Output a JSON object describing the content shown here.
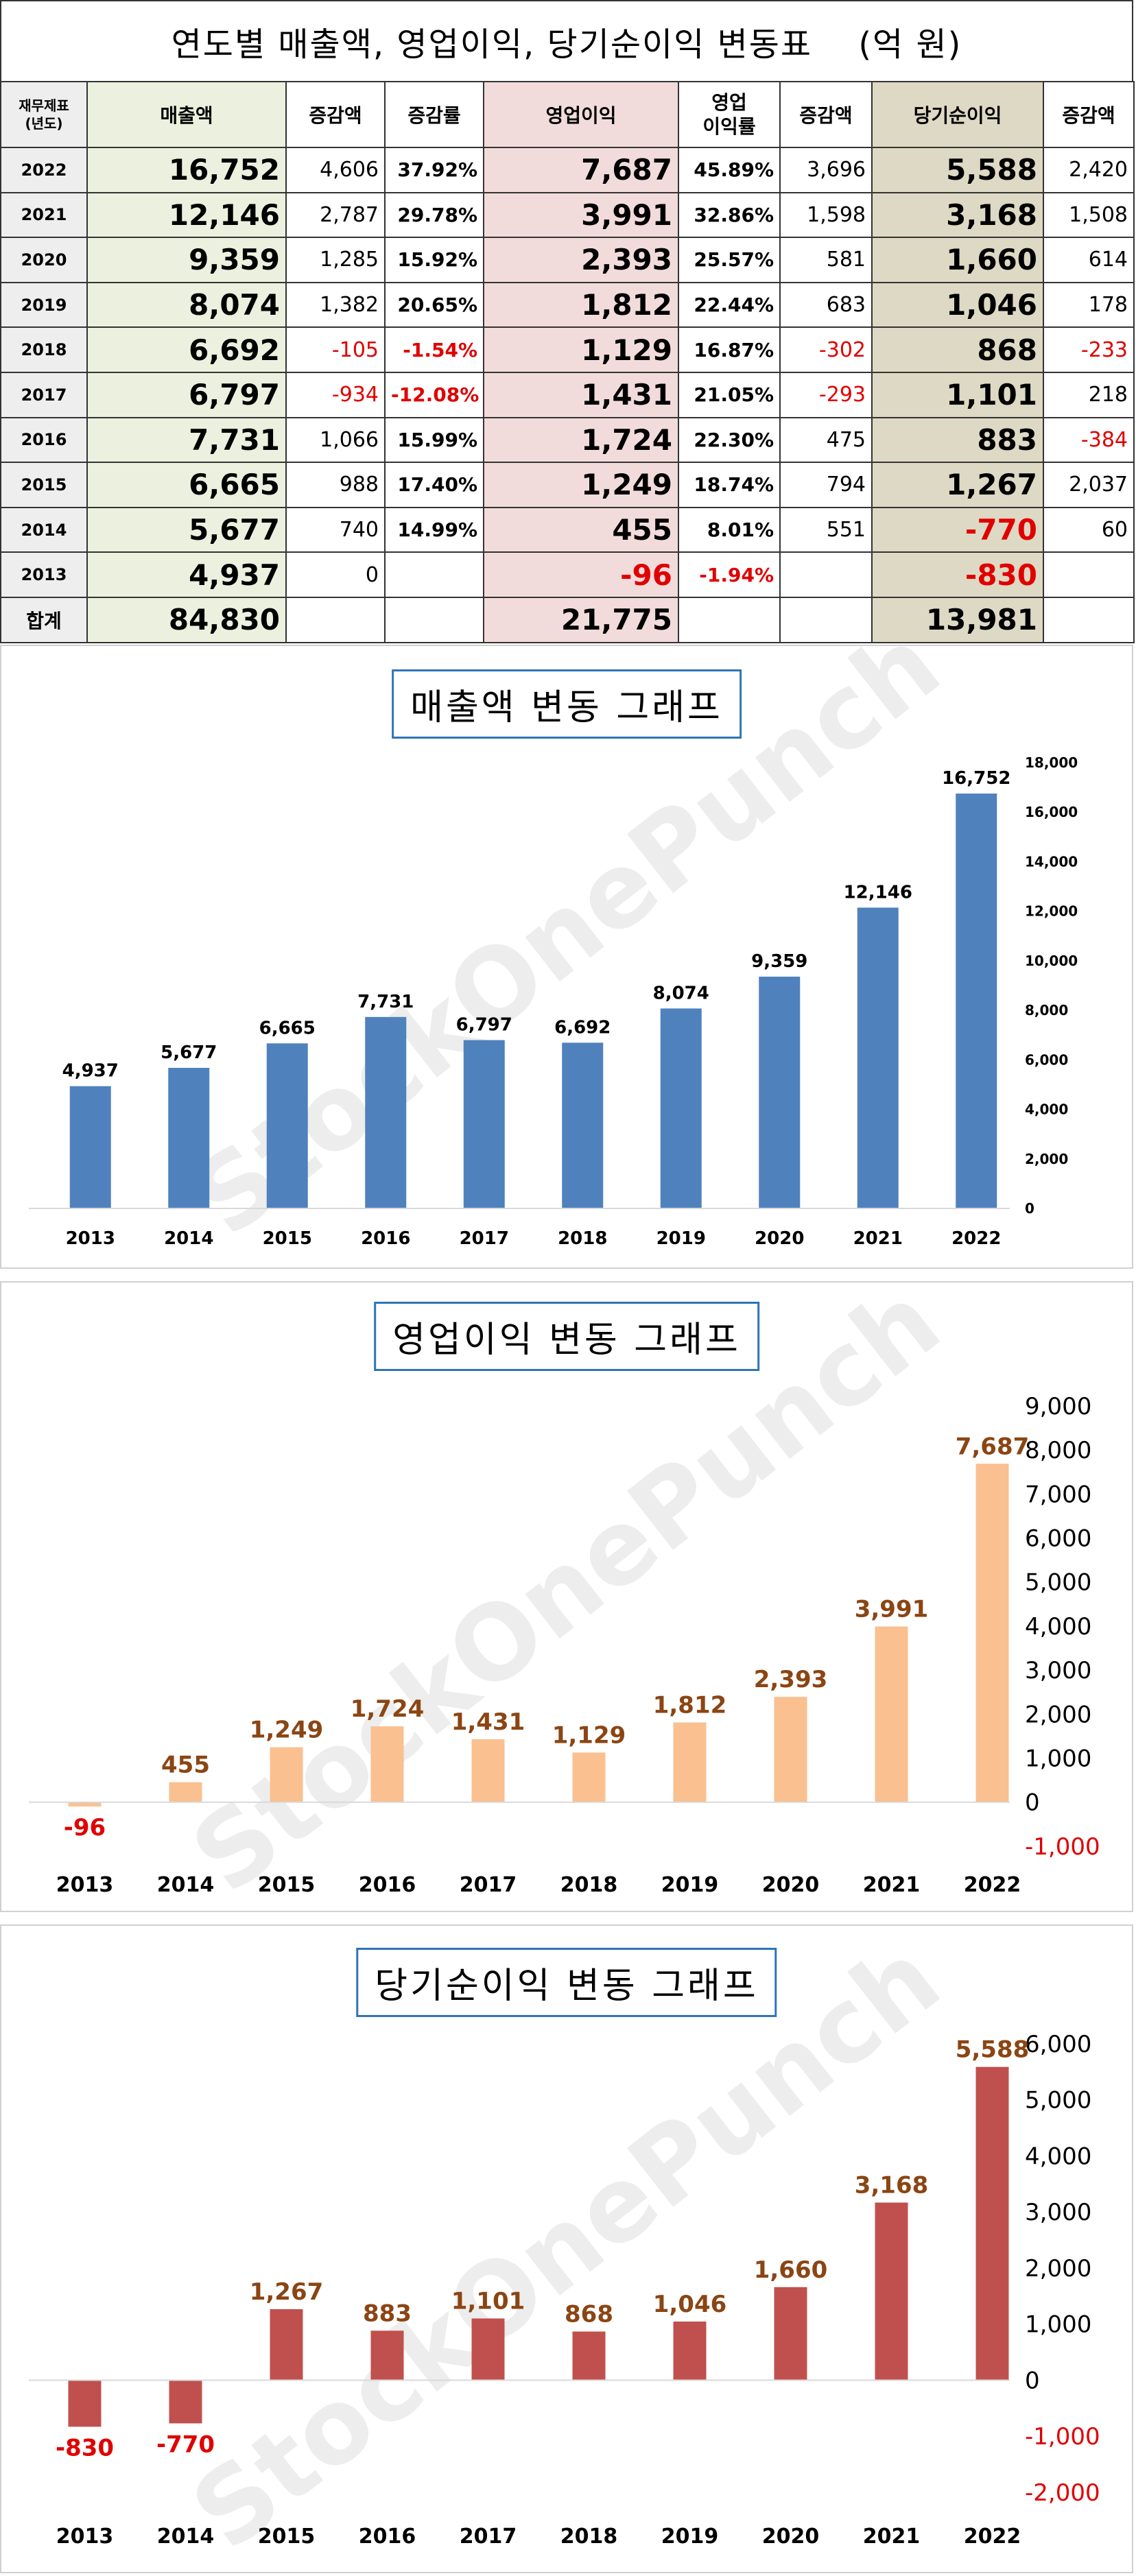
{
  "title": "연도별 매출액, 영업이익, 당기순이익 변동표　 (억 원)",
  "watermark": "StockOnePunch",
  "table": {
    "headers": {
      "year": "재무제표\n(년도)",
      "sales": "매출액",
      "sales_chg": "증감액",
      "sales_rate": "증감률",
      "op": "영업이익",
      "op_margin": "영업\n이익률",
      "op_chg": "증감액",
      "net": "당기순이익",
      "net_chg": "증감액"
    },
    "rows": [
      {
        "year": "2022",
        "sales": "16,752",
        "sales_chg": "4,606",
        "sales_rate": "37.92%",
        "op": "7,687",
        "op_margin": "45.89%",
        "op_chg": "3,696",
        "net": "5,588",
        "net_chg": "2,420"
      },
      {
        "year": "2021",
        "sales": "12,146",
        "sales_chg": "2,787",
        "sales_rate": "29.78%",
        "op": "3,991",
        "op_margin": "32.86%",
        "op_chg": "1,598",
        "net": "3,168",
        "net_chg": "1,508"
      },
      {
        "year": "2020",
        "sales": "9,359",
        "sales_chg": "1,285",
        "sales_rate": "15.92%",
        "op": "2,393",
        "op_margin": "25.57%",
        "op_chg": "581",
        "net": "1,660",
        "net_chg": "614"
      },
      {
        "year": "2019",
        "sales": "8,074",
        "sales_chg": "1,382",
        "sales_rate": "20.65%",
        "op": "1,812",
        "op_margin": "22.44%",
        "op_chg": "683",
        "net": "1,046",
        "net_chg": "178"
      },
      {
        "year": "2018",
        "sales": "6,692",
        "sales_chg": "-105",
        "sales_rate": "-1.54%",
        "op": "1,129",
        "op_margin": "16.87%",
        "op_chg": "-302",
        "net": "868",
        "net_chg": "-233"
      },
      {
        "year": "2017",
        "sales": "6,797",
        "sales_chg": "-934",
        "sales_rate": "-12.08%",
        "op": "1,431",
        "op_margin": "21.05%",
        "op_chg": "-293",
        "net": "1,101",
        "net_chg": "218"
      },
      {
        "year": "2016",
        "sales": "7,731",
        "sales_chg": "1,066",
        "sales_rate": "15.99%",
        "op": "1,724",
        "op_margin": "22.30%",
        "op_chg": "475",
        "net": "883",
        "net_chg": "-384"
      },
      {
        "year": "2015",
        "sales": "6,665",
        "sales_chg": "988",
        "sales_rate": "17.40%",
        "op": "1,249",
        "op_margin": "18.74%",
        "op_chg": "794",
        "net": "1,267",
        "net_chg": "2,037"
      },
      {
        "year": "2014",
        "sales": "5,677",
        "sales_chg": "740",
        "sales_rate": "14.99%",
        "op": "455",
        "op_margin": "8.01%",
        "op_chg": "551",
        "net": "-770",
        "net_chg": "60"
      },
      {
        "year": "2013",
        "sales": "4,937",
        "sales_chg": "0",
        "sales_rate": "",
        "op": "-96",
        "op_margin": "-1.94%",
        "op_chg": "",
        "net": "-830",
        "net_chg": ""
      }
    ],
    "total": {
      "label": "합계",
      "sales": "84,830",
      "op": "21,775",
      "net": "13,981"
    }
  },
  "chart_data": [
    {
      "type": "bar",
      "title": "매출액 변동 그래프",
      "categories": [
        "2013",
        "2014",
        "2015",
        "2016",
        "2017",
        "2018",
        "2019",
        "2020",
        "2021",
        "2022"
      ],
      "values": [
        4937,
        5677,
        6665,
        7731,
        6797,
        6692,
        8074,
        9359,
        12146,
        16752
      ],
      "ylim": [
        0,
        18000
      ],
      "yticks": [
        0,
        2000,
        4000,
        6000,
        8000,
        10000,
        12000,
        14000,
        16000,
        18000
      ],
      "bar_color": "#4f81bd",
      "label_color": "#000000"
    },
    {
      "type": "bar",
      "title": "영업이익 변동 그래프",
      "categories": [
        "2013",
        "2014",
        "2015",
        "2016",
        "2017",
        "2018",
        "2019",
        "2020",
        "2021",
        "2022"
      ],
      "values": [
        -96,
        455,
        1249,
        1724,
        1431,
        1129,
        1812,
        2393,
        3991,
        7687
      ],
      "ylim": [
        -1000,
        9000
      ],
      "yticks": [
        -1000,
        0,
        1000,
        2000,
        3000,
        4000,
        5000,
        6000,
        7000,
        8000,
        9000
      ],
      "bar_color": "#fac090",
      "label_color": "#8b4513"
    },
    {
      "type": "bar",
      "title": "당기순이익 변동 그래프",
      "categories": [
        "2013",
        "2014",
        "2015",
        "2016",
        "2017",
        "2018",
        "2019",
        "2020",
        "2021",
        "2022"
      ],
      "values": [
        -830,
        -770,
        1267,
        883,
        1101,
        868,
        1046,
        1660,
        3168,
        5588
      ],
      "ylim": [
        -2000,
        6000
      ],
      "yticks": [
        -2000,
        -1000,
        0,
        1000,
        2000,
        3000,
        4000,
        5000,
        6000
      ],
      "bar_color": "#c0504d",
      "label_color": "#8b4513"
    }
  ]
}
